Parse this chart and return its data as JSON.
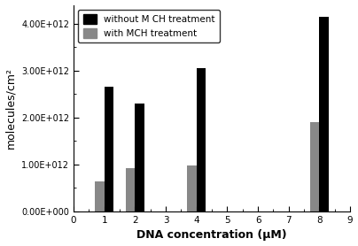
{
  "categories": [
    1,
    2,
    4,
    8
  ],
  "without_mch": [
    2650000000000.0,
    2300000000000.0,
    3050000000000.0,
    4150000000000.0
  ],
  "with_mch": [
    650000000000.0,
    930000000000.0,
    980000000000.0,
    1900000000000.0
  ],
  "bar_color_without": "#000000",
  "bar_color_with": "#888888",
  "xlabel": "DNA concentration (μM)",
  "ylabel": "molecules/cm²",
  "xlim": [
    0,
    9
  ],
  "ylim": [
    0,
    4400000000000.0
  ],
  "yticks": [
    0,
    1000000000000.0,
    2000000000000.0,
    3000000000000.0,
    4000000000000.0
  ],
  "ytick_labels": [
    "0.00E+000",
    "1.00E+012",
    "2.00E+012",
    "3.00E+012",
    "4.00E+012"
  ],
  "xticks": [
    0,
    1,
    2,
    3,
    4,
    5,
    6,
    7,
    8,
    9
  ],
  "legend_labels": [
    "without M CH treatment",
    "with MCH treatment"
  ],
  "bar_width": 0.3,
  "background_color": "#ffffff"
}
